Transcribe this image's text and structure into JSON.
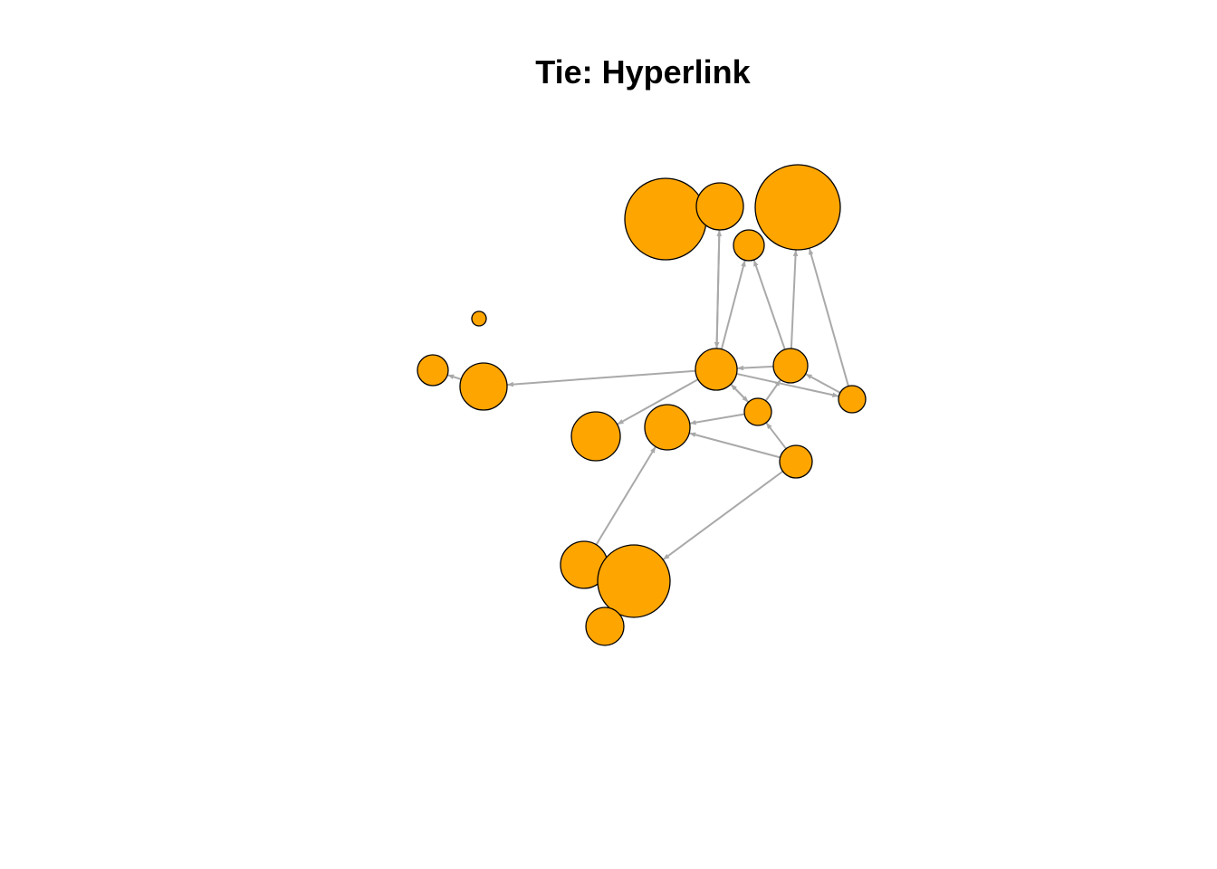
{
  "title": "Tie: Hyperlink",
  "colors": {
    "node_fill": "#FFA500",
    "node_stroke": "#000000",
    "edge": "#A9A9A9",
    "background": "#FFFFFF"
  },
  "graph": {
    "directed": true,
    "node_count": 20,
    "nodes": [
      {
        "id": "n1"
      },
      {
        "id": "n2"
      },
      {
        "id": "n3"
      },
      {
        "id": "n4"
      },
      {
        "id": "n5"
      },
      {
        "id": "n6"
      },
      {
        "id": "n7"
      },
      {
        "id": "n8"
      },
      {
        "id": "n9"
      },
      {
        "id": "n10"
      },
      {
        "id": "n11"
      },
      {
        "id": "n12"
      },
      {
        "id": "n13"
      },
      {
        "id": "n14"
      },
      {
        "id": "n15"
      },
      {
        "id": "n16"
      },
      {
        "id": "n17"
      },
      {
        "id": "n18"
      },
      {
        "id": "n19"
      },
      {
        "id": "n20"
      }
    ],
    "edges": [
      {
        "from": "n9",
        "to": "n2"
      },
      {
        "from": "n2",
        "to": "n9"
      },
      {
        "from": "n9",
        "to": "n4"
      },
      {
        "from": "n10",
        "to": "n4"
      },
      {
        "from": "n10",
        "to": "n3"
      },
      {
        "from": "n17",
        "to": "n3"
      },
      {
        "from": "n9",
        "to": "n8"
      },
      {
        "from": "n9",
        "to": "n12"
      },
      {
        "from": "n12",
        "to": "n9"
      },
      {
        "from": "n10",
        "to": "n9"
      },
      {
        "from": "n9",
        "to": "n17"
      },
      {
        "from": "n17",
        "to": "n10"
      },
      {
        "from": "n9",
        "to": "n15"
      },
      {
        "from": "n15",
        "to": "n9"
      },
      {
        "from": "n15",
        "to": "n10"
      },
      {
        "from": "n15",
        "to": "n14"
      },
      {
        "from": "n16",
        "to": "n15"
      },
      {
        "from": "n16",
        "to": "n14"
      },
      {
        "from": "n16",
        "to": "n19"
      },
      {
        "from": "n18",
        "to": "n14"
      },
      {
        "from": "n7",
        "to": "n8"
      }
    ]
  }
}
